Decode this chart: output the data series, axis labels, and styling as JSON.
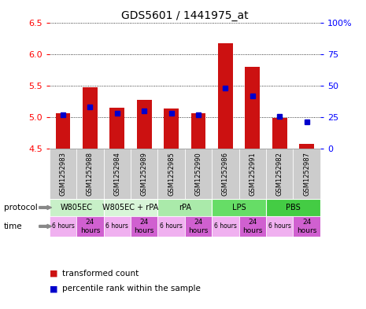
{
  "title": "GDS5601 / 1441975_at",
  "samples": [
    "GSM1252983",
    "GSM1252988",
    "GSM1252984",
    "GSM1252989",
    "GSM1252985",
    "GSM1252990",
    "GSM1252986",
    "GSM1252991",
    "GSM1252982",
    "GSM1252987"
  ],
  "transformed_counts": [
    5.06,
    5.48,
    5.15,
    5.28,
    5.14,
    5.06,
    6.18,
    5.8,
    4.99,
    4.57
  ],
  "percentile_ranks": [
    27,
    33,
    28,
    30,
    28,
    27,
    48,
    42,
    26,
    21
  ],
  "ymin": 4.5,
  "ymax": 6.5,
  "yticks": [
    4.5,
    5.0,
    5.5,
    6.0,
    6.5
  ],
  "right_yticks": [
    0,
    25,
    50,
    75,
    100
  ],
  "protocols": [
    {
      "label": "W805EC",
      "start": 0,
      "end": 2,
      "color": "#c8f0c8"
    },
    {
      "label": "W805EC + rPA",
      "start": 2,
      "end": 4,
      "color": "#d8f5d8"
    },
    {
      "label": "rPA",
      "start": 4,
      "end": 6,
      "color": "#aaeaaa"
    },
    {
      "label": "LPS",
      "start": 6,
      "end": 8,
      "color": "#66dd66"
    },
    {
      "label": "PBS",
      "start": 8,
      "end": 10,
      "color": "#44cc44"
    }
  ],
  "time_labels": [
    "6 hours",
    "24\nhours",
    "6 hours",
    "24\nhours",
    "6 hours",
    "24\nhours",
    "6 hours",
    "24\nhours",
    "6 hours",
    "24\nhours"
  ],
  "time_color_6h": "#f0b0f0",
  "time_color_24h": "#d060d0",
  "bar_color": "#cc1111",
  "dot_color": "#0000cc",
  "bar_width": 0.55,
  "sample_bg_color": "#cccccc",
  "protocol_label_color": "black",
  "time_fontsize": 6.5,
  "sample_fontsize": 6.0,
  "axis_fontsize": 8,
  "legend_fontsize": 7.5
}
